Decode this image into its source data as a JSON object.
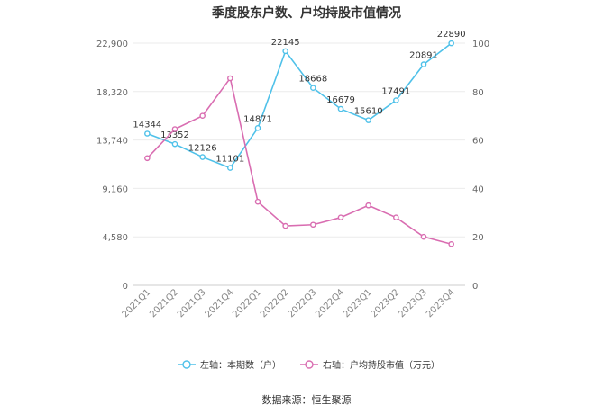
{
  "chart_data": {
    "type": "line",
    "title": "季度股东户数、户均持股市值情况",
    "categories": [
      "2021Q1",
      "2021Q2",
      "2021Q3",
      "2021Q4",
      "2022Q1",
      "2022Q2",
      "2022Q3",
      "2022Q4",
      "2023Q1",
      "2023Q2",
      "2023Q3",
      "2023Q4"
    ],
    "left_axis": {
      "ticks": [
        "0",
        "4,580",
        "9,160",
        "13,740",
        "18,320",
        "22,900"
      ],
      "ylim": [
        0,
        22900
      ]
    },
    "right_axis": {
      "ticks": [
        "0",
        "20",
        "40",
        "60",
        "80",
        "100"
      ],
      "ylim": [
        0,
        100
      ]
    },
    "grid": true,
    "legend_position": "bottom",
    "series": [
      {
        "name": "左轴：本期数（户）",
        "axis": "left",
        "color": "#4fc1e9",
        "values": [
          14344,
          13352,
          12126,
          11101,
          14871,
          22145,
          18668,
          16679,
          15610,
          17491,
          20891,
          22890
        ],
        "labels": [
          "14344",
          "13352",
          "12126",
          "11101",
          "14871",
          "22145",
          "18668",
          "16679",
          "15610",
          "17491",
          "20891",
          "22890"
        ]
      },
      {
        "name": "右轴：户均持股市值（万元）",
        "axis": "right",
        "color": "#d96db1",
        "values": [
          52.5,
          64.5,
          70.0,
          85.5,
          34.5,
          24.5,
          25.0,
          28.0,
          33.0,
          28.0,
          20.0,
          17.0
        ]
      }
    ]
  },
  "source": "数据来源：恒生聚源"
}
